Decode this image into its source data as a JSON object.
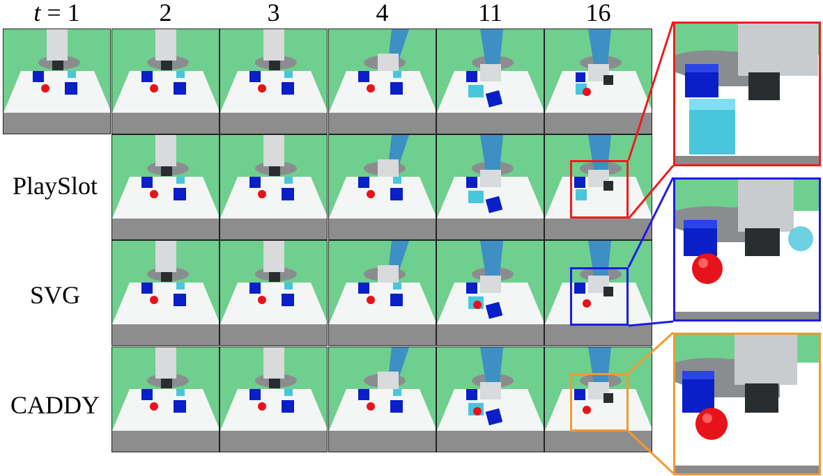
{
  "header": {
    "t_var": "t",
    "t_eq": " = 1",
    "steps": [
      "2",
      "3",
      "4",
      "11",
      "16"
    ]
  },
  "rows": [
    {
      "label": ""
    },
    {
      "label": "PlaySlot"
    },
    {
      "label": "SVG"
    },
    {
      "label": "CADDY"
    }
  ],
  "colors": {
    "background_green": "#6fcf8f",
    "playslot_box": "#ee1c1c",
    "svg_box": "#1c1ce6",
    "caddy_box": "#f29a2e",
    "cube_blue": "#0a1fc8",
    "cube_cyan": "#48c6dc",
    "ball_red": "#e8121a"
  }
}
